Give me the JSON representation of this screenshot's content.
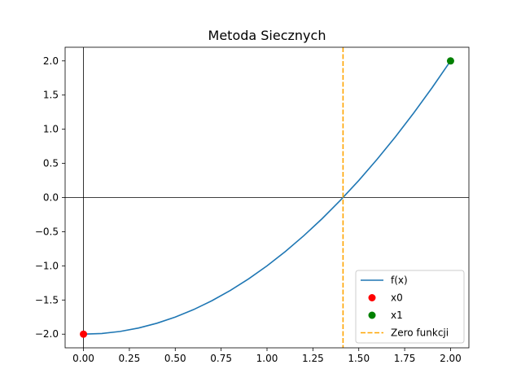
{
  "chart_data": {
    "type": "line",
    "title": "Metoda Siecznych",
    "xlabel": "",
    "ylabel": "",
    "xlim": [
      -0.1,
      2.1
    ],
    "ylim": [
      -2.2,
      2.2
    ],
    "x_ticks": [
      0.0,
      0.25,
      0.5,
      0.75,
      1.0,
      1.25,
      1.5,
      1.75,
      2.0
    ],
    "x_tick_labels": [
      "0.00",
      "0.25",
      "0.50",
      "0.75",
      "1.00",
      "1.25",
      "1.50",
      "1.75",
      "2.00"
    ],
    "y_ticks": [
      -2.0,
      -1.5,
      -1.0,
      -0.5,
      0.0,
      0.5,
      1.0,
      1.5,
      2.0
    ],
    "y_tick_labels": [
      "−2.0",
      "−1.5",
      "−1.0",
      "−0.5",
      "0.0",
      "0.5",
      "1.0",
      "1.5",
      "2.0"
    ],
    "grid": false,
    "legend_position": "bottom-right",
    "series": [
      {
        "name": "f(x)",
        "kind": "line",
        "color": "#1f77b4",
        "x": [
          0.0,
          0.1,
          0.2,
          0.3,
          0.4,
          0.5,
          0.6,
          0.7,
          0.8,
          0.9,
          1.0,
          1.1,
          1.2,
          1.3,
          1.4,
          1.5,
          1.6,
          1.7,
          1.8,
          1.9,
          2.0
        ],
        "y": [
          -2.0,
          -1.99,
          -1.96,
          -1.91,
          -1.84,
          -1.75,
          -1.64,
          -1.51,
          -1.36,
          -1.19,
          -1.0,
          -0.79,
          -0.56,
          -0.31,
          -0.04,
          0.25,
          0.56,
          0.89,
          1.24,
          1.61,
          2.0
        ]
      },
      {
        "name": "x0",
        "kind": "scatter",
        "color": "#ff0000",
        "x": [
          0.0
        ],
        "y": [
          -2.0
        ]
      },
      {
        "name": "x1",
        "kind": "scatter",
        "color": "#008000",
        "x": [
          2.0
        ],
        "y": [
          2.0
        ]
      },
      {
        "name": "Zero funkcji",
        "kind": "vline",
        "color": "#ffa500",
        "x": 1.4142
      }
    ],
    "reference_lines": {
      "x": 0,
      "y": 0,
      "color": "#000000"
    }
  }
}
